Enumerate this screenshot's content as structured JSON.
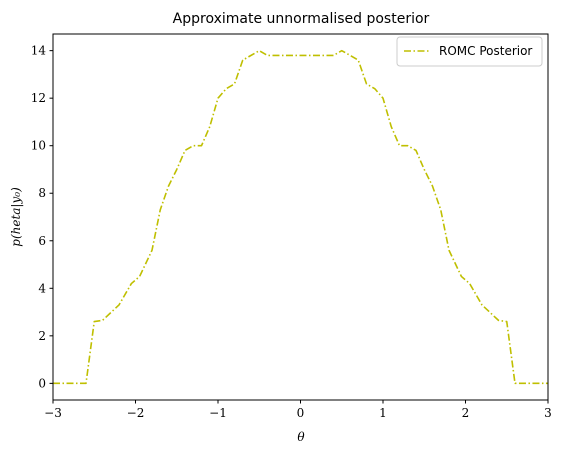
{
  "chart_data": {
    "type": "line",
    "title": "Approximate unnormalised posterior",
    "xlabel": "θ",
    "ylabel": "p(heta|y₀)",
    "xlim": [
      -3,
      3
    ],
    "ylim": [
      -0.7,
      14.7
    ],
    "xticks": [
      -3,
      -2,
      -1,
      0,
      1,
      2,
      3
    ],
    "xtick_labels": [
      "−3",
      "−2",
      "−1",
      "0",
      "1",
      "2",
      "3"
    ],
    "yticks": [
      0,
      2,
      4,
      6,
      8,
      10,
      12,
      14
    ],
    "ytick_labels": [
      "0",
      "2",
      "4",
      "6",
      "8",
      "10",
      "12",
      "14"
    ],
    "grid": false,
    "legend_position": "top-right",
    "series": [
      {
        "name": "ROMC Posterior",
        "color": "#bfbf00",
        "linestyle": "dashdot",
        "x": [
          -3.0,
          -2.6,
          -2.5,
          -2.4,
          -2.2,
          -2.05,
          -1.95,
          -1.8,
          -1.7,
          -1.6,
          -1.5,
          -1.4,
          -1.3,
          -1.2,
          -1.1,
          -1.0,
          -0.9,
          -0.8,
          -0.7,
          -0.5,
          -0.4,
          -0.3,
          -0.2,
          -0.1,
          0.0,
          0.1,
          0.2,
          0.3,
          0.4,
          0.5,
          0.6,
          0.7,
          0.8,
          0.9,
          1.0,
          1.1,
          1.2,
          1.3,
          1.4,
          1.5,
          1.6,
          1.7,
          1.8,
          1.95,
          2.05,
          2.2,
          2.4,
          2.5,
          2.6,
          3.0
        ],
        "y": [
          0.0,
          0.0,
          2.6,
          2.65,
          3.3,
          4.2,
          4.5,
          5.6,
          7.3,
          8.3,
          9.0,
          9.8,
          10.0,
          10.0,
          10.8,
          12.0,
          12.4,
          12.6,
          13.6,
          14.0,
          13.8,
          13.8,
          13.8,
          13.8,
          13.8,
          13.8,
          13.8,
          13.8,
          13.8,
          14.0,
          13.8,
          13.6,
          12.6,
          12.4,
          12.0,
          10.8,
          10.0,
          10.0,
          9.8,
          9.0,
          8.3,
          7.3,
          5.6,
          4.5,
          4.2,
          3.3,
          2.65,
          2.6,
          0.0,
          0.0
        ]
      }
    ]
  }
}
